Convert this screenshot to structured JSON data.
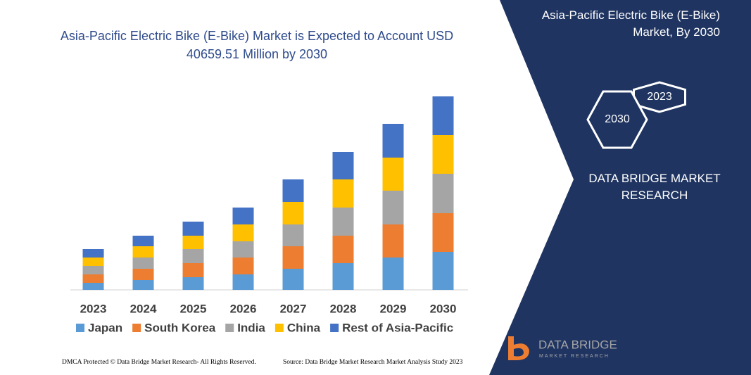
{
  "chart_data": {
    "type": "bar",
    "stacked": true,
    "title": "Asia-Pacific Electric Bike (E-Bike) Market is Expected to Account USD 40659.51 Million by 2030",
    "categories": [
      "2023",
      "2024",
      "2025",
      "2026",
      "2027",
      "2028",
      "2029",
      "2030"
    ],
    "series": [
      {
        "name": "Japan",
        "color": "#5b9bd5",
        "values": [
          10,
          14,
          18,
          22,
          30,
          38,
          46,
          54
        ]
      },
      {
        "name": "South Korea",
        "color": "#ed7d31",
        "values": [
          12,
          16,
          20,
          24,
          32,
          39,
          47,
          55
        ]
      },
      {
        "name": "India",
        "color": "#a5a5a5",
        "values": [
          12,
          16,
          20,
          23,
          31,
          40,
          48,
          56
        ]
      },
      {
        "name": "China",
        "color": "#ffc000",
        "values": [
          12,
          16,
          19,
          24,
          32,
          40,
          47,
          55
        ]
      },
      {
        "name": "Rest of Asia-Pacific",
        "color": "#4472c4",
        "values": [
          12,
          15,
          20,
          24,
          32,
          39,
          48,
          55
        ]
      }
    ],
    "ylim": [
      0,
      280
    ],
    "legend": "bottom"
  },
  "panel": {
    "title": "Asia-Pacific Electric Bike (E-Bike) Market, By 2030",
    "hex_back": "2023",
    "hex_front": "2030",
    "company": "DATA BRIDGE MARKET RESEARCH"
  },
  "logo": {
    "name": "DATA BRIDGE",
    "tagline": "MARKET RESEARCH"
  },
  "footer": {
    "left": "DMCA Protected © Data Bridge Market Research- All Rights Reserved.",
    "right": "Source: Data Bridge Market Research Market Analysis Study 2023"
  }
}
